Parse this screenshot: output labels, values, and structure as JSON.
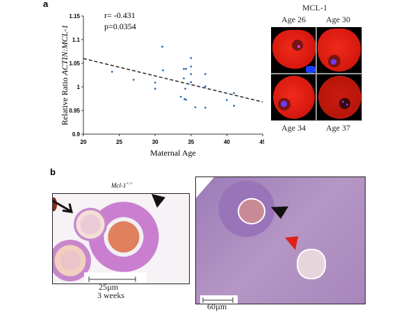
{
  "panel_a": {
    "letter": "a",
    "stats": {
      "r": "r= -0.431",
      "p": "p=0.0354"
    },
    "fluorescence": {
      "title": "MCL-1",
      "labels": [
        "Age 26",
        "Age 30",
        "Age 34",
        "Age 37"
      ],
      "colors": {
        "cytoplasm": "#e0200f",
        "dna": "#5a3cff"
      }
    }
  },
  "chart_data": {
    "type": "scatter",
    "xlabel": "Maternal Age",
    "ylabel_prefix": "Relative Ratio ",
    "ylabel_italic": "ACTIN:MCL-1",
    "xlim": [
      20,
      45
    ],
    "ylim": [
      0.9,
      1.15
    ],
    "xticks": [
      20,
      25,
      30,
      35,
      40,
      45
    ],
    "yticks": [
      0.9,
      0.95,
      1,
      1.05,
      1.1,
      1.15
    ],
    "ytick_labels": [
      "0.9",
      "0.95",
      "1",
      "1.05",
      "1.1",
      "1.15"
    ],
    "grid": false,
    "point_color": "#2e6db4",
    "points": [
      [
        24,
        1.032
      ],
      [
        27,
        1.015
      ],
      [
        30,
        1.009
      ],
      [
        30,
        0.996
      ],
      [
        31,
        1.085
      ],
      [
        31.1,
        1.035
      ],
      [
        33.6,
        0.979
      ],
      [
        34,
        1.038
      ],
      [
        34,
        1.018
      ],
      [
        34.1,
        0.974
      ],
      [
        34.2,
        0.996
      ],
      [
        34.3,
        1.038
      ],
      [
        34.3,
        0.973
      ],
      [
        35,
        1.061
      ],
      [
        35,
        1.043
      ],
      [
        35,
        1.027
      ],
      [
        35,
        1.01
      ],
      [
        35.6,
        0.957
      ],
      [
        37,
        1.027
      ],
      [
        37,
        1.001
      ],
      [
        37,
        0.956
      ],
      [
        40,
        0.972
      ],
      [
        41,
        0.987
      ],
      [
        41,
        0.96
      ]
    ],
    "trendline": {
      "style": "dashed",
      "from": [
        20,
        1.06
      ],
      "to": [
        45,
        0.968
      ]
    }
  },
  "panel_b": {
    "letter": "b",
    "genotype": "Mcl-1",
    "genotype_sup": "+/+",
    "left_scale": "25µm",
    "left_age": "3 weeks",
    "right_scale": "60µm"
  }
}
